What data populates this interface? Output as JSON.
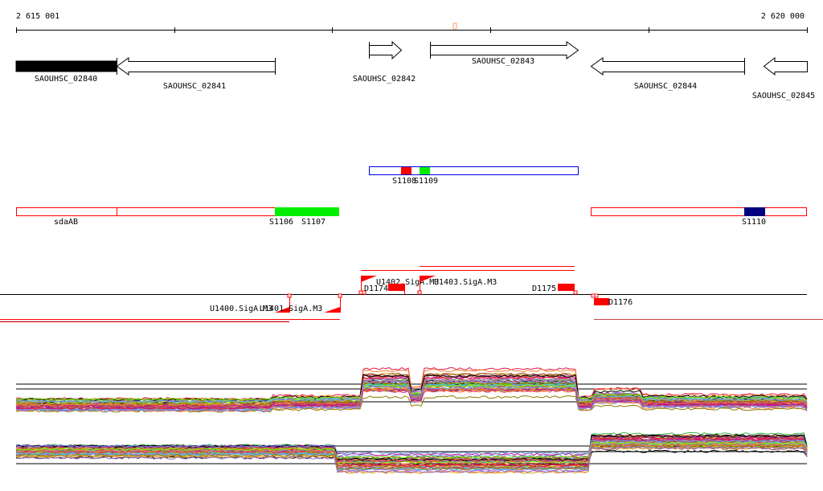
{
  "ruler": {
    "start_label": "2 615 001",
    "end_label": "2 620 000"
  },
  "genes": [
    {
      "name": "SAOUHSC_02840",
      "strand": "-",
      "highlighted": true
    },
    {
      "name": "SAOUHSC_02841",
      "strand": "-"
    },
    {
      "name": "SAOUHSC_02842",
      "strand": "+"
    },
    {
      "name": "SAOUHSC_02843",
      "strand": "+"
    },
    {
      "name": "SAOUHSC_02844",
      "strand": "-"
    },
    {
      "name": "SAOUHSC_02845",
      "strand": "-"
    }
  ],
  "segments_plus": [
    {
      "name": "S1108",
      "color": "#ff0000"
    },
    {
      "name": "S1109",
      "color": "#00ee00"
    }
  ],
  "segments_minus": [
    {
      "name": "sdaAB"
    },
    {
      "name": "S1106",
      "color": "#00ee00"
    },
    {
      "name": "S1107"
    },
    {
      "name": "S1110",
      "color": "#000080"
    }
  ],
  "regulatory": {
    "promoters": [
      "U1400.SigA.M3",
      "U1401.SigA.M3",
      "U1402.SigA.M3",
      "U1403.SigA.M3"
    ],
    "terminators": [
      "D1174",
      "D1175",
      "D1176"
    ]
  },
  "colors": {
    "feature_red": "#ff0000",
    "outline_blue": "#0000dd"
  }
}
